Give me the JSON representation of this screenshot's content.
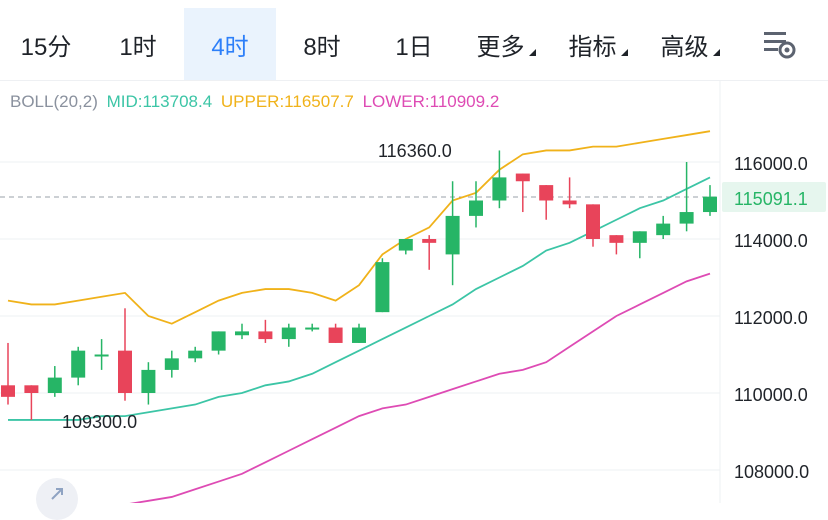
{
  "tabs": [
    {
      "label": "15分",
      "active": false,
      "dropdown": false
    },
    {
      "label": "1时",
      "active": false,
      "dropdown": false
    },
    {
      "label": "4时",
      "active": true,
      "dropdown": false
    },
    {
      "label": "8时",
      "active": false,
      "dropdown": false
    },
    {
      "label": "1日",
      "active": false,
      "dropdown": false
    },
    {
      "label": "更多",
      "active": false,
      "dropdown": true
    },
    {
      "label": "指标",
      "active": false,
      "dropdown": true
    },
    {
      "label": "高级",
      "active": false,
      "dropdown": true
    }
  ],
  "settings_icon": "chart-settings-icon",
  "zoom_icon": "expand-icon",
  "indicator": {
    "name": "BOLL(20,2)",
    "mid": "MID:113708.4",
    "upper": "UPPER:116507.7",
    "lower": "LOWER:110909.2"
  },
  "colors": {
    "up": "#26b566",
    "down": "#e8445a",
    "mid": "#3cc5a6",
    "upper": "#f0b21a",
    "lower": "#de4bb4",
    "active_tab": "#2d7ff9"
  },
  "annotations": {
    "high_label": "116360.0",
    "low_label": "109300.0"
  },
  "current_price": "115091.1",
  "chart_data": {
    "type": "candlestick",
    "ylim": [
      107000,
      118000
    ],
    "yticks": [
      "116000.0",
      "114000.0",
      "112000.0",
      "110000.0",
      "108000.0"
    ],
    "ytick_values": [
      116000,
      114000,
      112000,
      110000,
      108000
    ],
    "current_price": 115091.1,
    "high": 116360.0,
    "low": 109300.0,
    "candles": [
      {
        "o": 110200,
        "h": 111300,
        "l": 109700,
        "c": 109900
      },
      {
        "o": 110200,
        "h": 110200,
        "l": 109300,
        "c": 110000
      },
      {
        "o": 110000,
        "h": 110700,
        "l": 109900,
        "c": 110400
      },
      {
        "o": 110400,
        "h": 111200,
        "l": 110200,
        "c": 111100
      },
      {
        "o": 111000,
        "h": 111400,
        "l": 110600,
        "c": 111000
      },
      {
        "o": 111100,
        "h": 112200,
        "l": 109800,
        "c": 110000
      },
      {
        "o": 110000,
        "h": 110800,
        "l": 109700,
        "c": 110600
      },
      {
        "o": 110600,
        "h": 111100,
        "l": 110400,
        "c": 110900
      },
      {
        "o": 110900,
        "h": 111200,
        "l": 110800,
        "c": 111100
      },
      {
        "o": 111100,
        "h": 111600,
        "l": 111000,
        "c": 111600
      },
      {
        "o": 111500,
        "h": 111800,
        "l": 111400,
        "c": 111600
      },
      {
        "o": 111600,
        "h": 111900,
        "l": 111300,
        "c": 111400
      },
      {
        "o": 111400,
        "h": 111800,
        "l": 111200,
        "c": 111700
      },
      {
        "o": 111700,
        "h": 111800,
        "l": 111600,
        "c": 111700
      },
      {
        "o": 111700,
        "h": 111800,
        "l": 111300,
        "c": 111300
      },
      {
        "o": 111300,
        "h": 111800,
        "l": 111300,
        "c": 111700
      },
      {
        "o": 112100,
        "h": 113500,
        "l": 112100,
        "c": 113400
      },
      {
        "o": 113700,
        "h": 114000,
        "l": 113600,
        "c": 114000
      },
      {
        "o": 114000,
        "h": 114100,
        "l": 113200,
        "c": 113900
      },
      {
        "o": 113600,
        "h": 115500,
        "l": 112800,
        "c": 114600
      },
      {
        "o": 114600,
        "h": 115500,
        "l": 114300,
        "c": 115000
      },
      {
        "o": 115000,
        "h": 116300,
        "l": 114800,
        "c": 115600
      },
      {
        "o": 115700,
        "h": 115700,
        "l": 114700,
        "c": 115500
      },
      {
        "o": 115400,
        "h": 115400,
        "l": 114500,
        "c": 115000
      },
      {
        "o": 115000,
        "h": 115600,
        "l": 114800,
        "c": 114900
      },
      {
        "o": 114900,
        "h": 114900,
        "l": 113800,
        "c": 114000
      },
      {
        "o": 114100,
        "h": 114100,
        "l": 113600,
        "c": 113900
      },
      {
        "o": 113900,
        "h": 114200,
        "l": 113500,
        "c": 114200
      },
      {
        "o": 114100,
        "h": 114600,
        "l": 114000,
        "c": 114400
      },
      {
        "o": 114400,
        "h": 116000,
        "l": 114200,
        "c": 114700
      },
      {
        "o": 114700,
        "h": 115400,
        "l": 114600,
        "c": 115100
      }
    ],
    "mid_band": [
      109300,
      109300,
      109300,
      109300,
      109400,
      109400,
      109500,
      109600,
      109700,
      109900,
      110000,
      110200,
      110300,
      110500,
      110800,
      111100,
      111400,
      111700,
      112000,
      112300,
      112700,
      113000,
      113300,
      113700,
      113900,
      114200,
      114500,
      114800,
      115000,
      115300,
      115600
    ],
    "upper_band": [
      112400,
      112300,
      112300,
      112400,
      112500,
      112600,
      112000,
      111800,
      112100,
      112400,
      112600,
      112700,
      112700,
      112600,
      112400,
      112800,
      113600,
      114000,
      114300,
      115000,
      115200,
      115800,
      116200,
      116300,
      116300,
      116400,
      116400,
      116500,
      116600,
      116700,
      116800
    ],
    "lower_band": [
      106800,
      106900,
      106900,
      107000,
      107000,
      107100,
      107200,
      107300,
      107500,
      107700,
      107900,
      108200,
      108500,
      108800,
      109100,
      109400,
      109600,
      109700,
      109900,
      110100,
      110300,
      110500,
      110600,
      110800,
      111200,
      111600,
      112000,
      112300,
      112600,
      112900,
      113100
    ]
  }
}
